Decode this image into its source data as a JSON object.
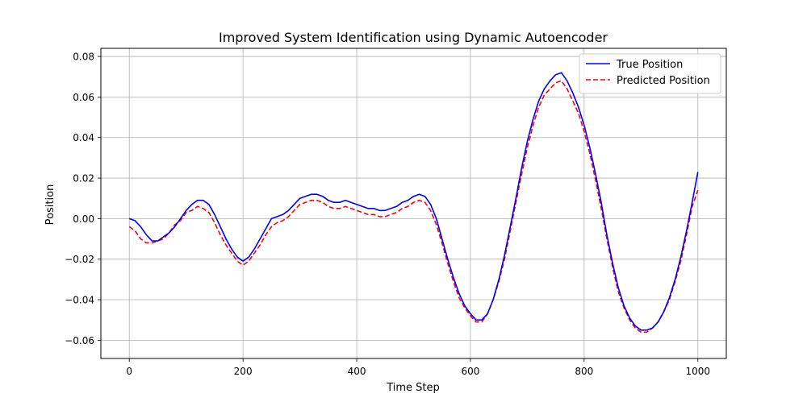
{
  "chart_data": {
    "type": "line",
    "title": "Improved System Identification using Dynamic Autoencoder",
    "xlabel": "Time Step",
    "ylabel": "Position",
    "xlim": [
      -50,
      1050
    ],
    "ylim": [
      -0.069,
      0.084
    ],
    "xticks": [
      0,
      200,
      400,
      600,
      800,
      1000
    ],
    "xtick_labels": [
      "0",
      "200",
      "400",
      "600",
      "800",
      "1000"
    ],
    "yticks": [
      -0.06,
      -0.04,
      -0.02,
      0.0,
      0.02,
      0.04,
      0.06,
      0.08
    ],
    "ytick_labels": [
      "−0.06",
      "−0.04",
      "−0.02",
      "0.00",
      "0.02",
      "0.04",
      "0.06",
      "0.08"
    ],
    "grid": true,
    "legend_position": "upper right",
    "series": [
      {
        "name": "True Position",
        "color": "#0000ff",
        "style": "solid",
        "x": [
          0,
          10,
          20,
          30,
          40,
          50,
          60,
          70,
          80,
          90,
          100,
          110,
          120,
          130,
          140,
          150,
          160,
          170,
          180,
          190,
          200,
          210,
          220,
          230,
          240,
          250,
          260,
          270,
          280,
          290,
          300,
          310,
          320,
          330,
          340,
          350,
          360,
          370,
          380,
          390,
          400,
          410,
          420,
          430,
          440,
          450,
          460,
          470,
          480,
          490,
          500,
          510,
          520,
          530,
          540,
          550,
          560,
          570,
          580,
          590,
          600,
          610,
          620,
          630,
          640,
          650,
          660,
          670,
          680,
          690,
          700,
          710,
          720,
          730,
          740,
          750,
          760,
          770,
          780,
          790,
          800,
          810,
          820,
          830,
          840,
          850,
          860,
          870,
          880,
          890,
          900,
          910,
          920,
          930,
          940,
          950,
          960,
          970,
          980,
          990,
          1000
        ],
        "values": [
          0.0,
          -0.001,
          -0.004,
          -0.008,
          -0.011,
          -0.011,
          -0.009,
          -0.007,
          -0.004,
          0.0,
          0.004,
          0.007,
          0.009,
          0.009,
          0.007,
          0.002,
          -0.004,
          -0.01,
          -0.015,
          -0.019,
          -0.021,
          -0.019,
          -0.015,
          -0.01,
          -0.005,
          0.0,
          0.001,
          0.002,
          0.004,
          0.007,
          0.01,
          0.011,
          0.012,
          0.012,
          0.011,
          0.009,
          0.008,
          0.008,
          0.009,
          0.008,
          0.007,
          0.006,
          0.005,
          0.005,
          0.004,
          0.004,
          0.005,
          0.006,
          0.008,
          0.009,
          0.011,
          0.012,
          0.011,
          0.007,
          0.0,
          -0.01,
          -0.02,
          -0.029,
          -0.037,
          -0.043,
          -0.047,
          -0.05,
          -0.05,
          -0.047,
          -0.04,
          -0.03,
          -0.018,
          -0.004,
          0.01,
          0.025,
          0.038,
          0.049,
          0.058,
          0.064,
          0.068,
          0.071,
          0.072,
          0.068,
          0.062,
          0.055,
          0.046,
          0.035,
          0.022,
          0.008,
          -0.008,
          -0.022,
          -0.034,
          -0.043,
          -0.049,
          -0.053,
          -0.055,
          -0.055,
          -0.054,
          -0.051,
          -0.046,
          -0.039,
          -0.03,
          -0.019,
          -0.006,
          0.008,
          0.023
        ]
      },
      {
        "name": "Predicted Position",
        "color": "#ff0000",
        "style": "dashed",
        "x": [
          0,
          10,
          20,
          30,
          40,
          50,
          60,
          70,
          80,
          90,
          100,
          110,
          120,
          130,
          140,
          150,
          160,
          170,
          180,
          190,
          200,
          210,
          220,
          230,
          240,
          250,
          260,
          270,
          280,
          290,
          300,
          310,
          320,
          330,
          340,
          350,
          360,
          370,
          380,
          390,
          400,
          410,
          420,
          430,
          440,
          450,
          460,
          470,
          480,
          490,
          500,
          510,
          520,
          530,
          540,
          550,
          560,
          570,
          580,
          590,
          600,
          610,
          620,
          630,
          640,
          650,
          660,
          670,
          680,
          690,
          700,
          710,
          720,
          730,
          740,
          750,
          760,
          770,
          780,
          790,
          800,
          810,
          820,
          830,
          840,
          850,
          860,
          870,
          880,
          890,
          900,
          910,
          920,
          930,
          940,
          950,
          960,
          970,
          980,
          990,
          1000
        ],
        "values": [
          -0.004,
          -0.006,
          -0.01,
          -0.012,
          -0.012,
          -0.011,
          -0.01,
          -0.007,
          -0.003,
          -0.001,
          0.003,
          0.004,
          0.006,
          0.005,
          0.003,
          -0.002,
          -0.008,
          -0.013,
          -0.017,
          -0.021,
          -0.023,
          -0.021,
          -0.017,
          -0.013,
          -0.008,
          -0.004,
          -0.002,
          -0.001,
          0.001,
          0.004,
          0.007,
          0.008,
          0.009,
          0.009,
          0.008,
          0.006,
          0.005,
          0.005,
          0.006,
          0.005,
          0.004,
          0.003,
          0.002,
          0.002,
          0.001,
          0.001,
          0.002,
          0.003,
          0.005,
          0.006,
          0.008,
          0.009,
          0.008,
          0.004,
          -0.003,
          -0.012,
          -0.022,
          -0.031,
          -0.039,
          -0.044,
          -0.048,
          -0.051,
          -0.051,
          -0.047,
          -0.04,
          -0.031,
          -0.02,
          -0.006,
          0.008,
          0.022,
          0.035,
          0.046,
          0.055,
          0.061,
          0.064,
          0.067,
          0.068,
          0.064,
          0.058,
          0.052,
          0.043,
          0.032,
          0.019,
          0.005,
          -0.01,
          -0.024,
          -0.036,
          -0.044,
          -0.05,
          -0.054,
          -0.056,
          -0.056,
          -0.054,
          -0.051,
          -0.046,
          -0.04,
          -0.031,
          -0.021,
          -0.008,
          0.006,
          0.014
        ]
      }
    ]
  }
}
